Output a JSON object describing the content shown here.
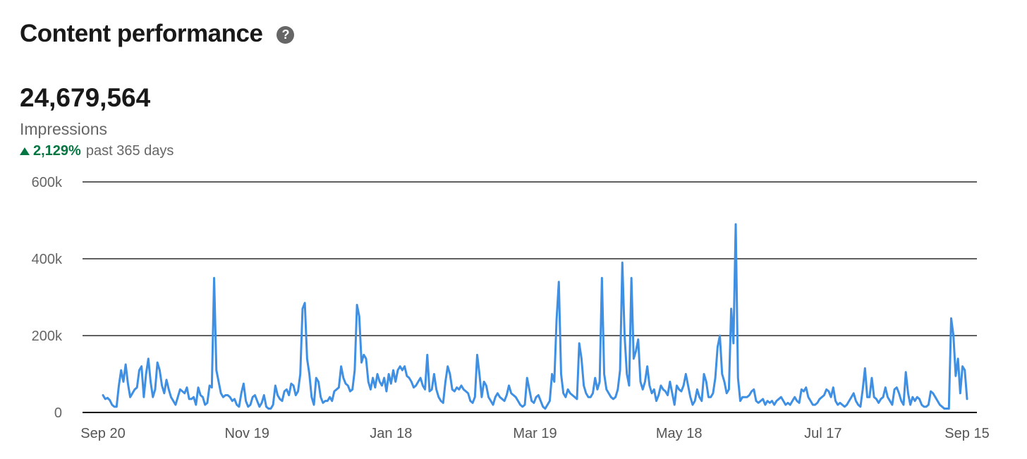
{
  "header": {
    "title": "Content performance",
    "help_icon": "question-circle-icon"
  },
  "metric": {
    "value": "24,679,564",
    "label": "Impressions",
    "change": "2,129%",
    "change_period": "past 365 days",
    "change_direction_icon": "triangle-up-icon"
  },
  "colors": {
    "line": "#3f8fe3",
    "positive": "#057642",
    "grid": "#000000",
    "axis_text": "#666666"
  },
  "chart_data": {
    "type": "line",
    "ylabel": "",
    "xlabel": "",
    "ylim": [
      0,
      600000
    ],
    "y_ticks": [
      0,
      200000,
      400000,
      600000
    ],
    "y_tick_labels": [
      "0",
      "200k",
      "400k",
      "600k"
    ],
    "x_tick_labels": [
      "Sep 20",
      "Nov 19",
      "Jan 18",
      "Mar 19",
      "May 18",
      "Jul 17",
      "Sep 15"
    ],
    "x_tick_days": [
      0,
      60,
      120,
      180,
      240,
      300,
      360
    ],
    "x_start": "Sep 20",
    "x_end": "Sep 15",
    "grid": true,
    "legend": "none",
    "series": [
      {
        "values": [
          45000,
          35000,
          38000,
          32000,
          20000,
          15000,
          15000,
          70000,
          110000,
          80000,
          125000,
          75000,
          40000,
          50000,
          60000,
          65000,
          110000,
          120000,
          40000,
          100000,
          140000,
          80000,
          40000,
          60000,
          130000,
          110000,
          70000,
          50000,
          85000,
          60000,
          40000,
          30000,
          20000,
          40000,
          60000,
          55000,
          50000,
          65000,
          35000,
          35000,
          40000,
          20000,
          65000,
          45000,
          40000,
          20000,
          25000,
          70000,
          65000,
          350000,
          110000,
          80000,
          50000,
          40000,
          45000,
          45000,
          40000,
          30000,
          35000,
          20000,
          15000,
          50000,
          75000,
          30000,
          15000,
          20000,
          40000,
          45000,
          30000,
          15000,
          25000,
          45000,
          15000,
          10000,
          10000,
          20000,
          70000,
          45000,
          35000,
          30000,
          55000,
          60000,
          45000,
          75000,
          70000,
          45000,
          55000,
          100000,
          270000,
          285000,
          140000,
          100000,
          40000,
          20000,
          90000,
          80000,
          40000,
          25000,
          30000,
          30000,
          40000,
          30000,
          55000,
          60000,
          65000,
          120000,
          90000,
          75000,
          70000,
          55000,
          60000,
          110000,
          280000,
          250000,
          130000,
          150000,
          140000,
          80000,
          60000,
          90000,
          65000,
          100000,
          80000,
          70000,
          90000,
          55000,
          100000,
          75000,
          110000,
          80000,
          110000,
          120000,
          110000,
          120000,
          95000,
          90000,
          80000,
          65000,
          70000,
          80000,
          90000,
          70000,
          60000,
          150000,
          55000,
          60000,
          100000,
          60000,
          40000,
          30000,
          25000,
          80000,
          120000,
          100000,
          60000,
          55000,
          65000,
          60000,
          70000,
          60000,
          55000,
          50000,
          30000,
          25000,
          40000,
          150000,
          100000,
          40000,
          80000,
          70000,
          40000,
          30000,
          20000,
          40000,
          50000,
          40000,
          35000,
          30000,
          45000,
          70000,
          50000,
          45000,
          40000,
          30000,
          20000,
          15000,
          20000,
          90000,
          60000,
          30000,
          25000,
          40000,
          45000,
          30000,
          15000,
          10000,
          20000,
          30000,
          100000,
          80000,
          240000,
          340000,
          100000,
          50000,
          40000,
          60000,
          50000,
          45000,
          40000,
          35000,
          180000,
          140000,
          70000,
          50000,
          40000,
          40000,
          50000,
          90000,
          60000,
          80000,
          350000,
          100000,
          60000,
          50000,
          40000,
          35000,
          40000,
          60000,
          110000,
          390000,
          200000,
          100000,
          70000,
          350000,
          140000,
          160000,
          190000,
          80000,
          60000,
          80000,
          120000,
          70000,
          50000,
          60000,
          30000,
          45000,
          70000,
          60000,
          55000,
          45000,
          80000,
          50000,
          20000,
          70000,
          60000,
          55000,
          70000,
          100000,
          70000,
          40000,
          20000,
          30000,
          60000,
          40000,
          30000,
          100000,
          80000,
          40000,
          40000,
          50000,
          90000,
          170000,
          200000,
          100000,
          80000,
          50000,
          60000,
          270000,
          180000,
          490000,
          90000,
          30000,
          40000,
          40000,
          40000,
          45000,
          55000,
          60000,
          30000,
          25000,
          30000,
          35000,
          20000,
          30000,
          25000,
          30000,
          20000,
          30000,
          35000,
          40000,
          30000,
          20000,
          25000,
          20000,
          30000,
          40000,
          30000,
          25000,
          60000,
          55000,
          65000,
          40000,
          30000,
          20000,
          20000,
          25000,
          35000,
          40000,
          45000,
          60000,
          55000,
          40000,
          65000,
          30000,
          20000,
          25000,
          20000,
          15000,
          20000,
          30000,
          40000,
          50000,
          30000,
          20000,
          15000,
          60000,
          115000,
          40000,
          40000,
          90000,
          40000,
          35000,
          25000,
          35000,
          40000,
          65000,
          40000,
          30000,
          20000,
          60000,
          65000,
          50000,
          30000,
          20000,
          105000,
          50000,
          20000,
          40000,
          30000,
          40000,
          35000,
          20000,
          15000,
          15000,
          20000,
          55000,
          50000,
          40000,
          30000,
          20000,
          15000,
          10000,
          10000,
          10000,
          245000,
          200000,
          95000,
          140000,
          50000,
          120000,
          110000,
          35000
        ]
      }
    ]
  }
}
